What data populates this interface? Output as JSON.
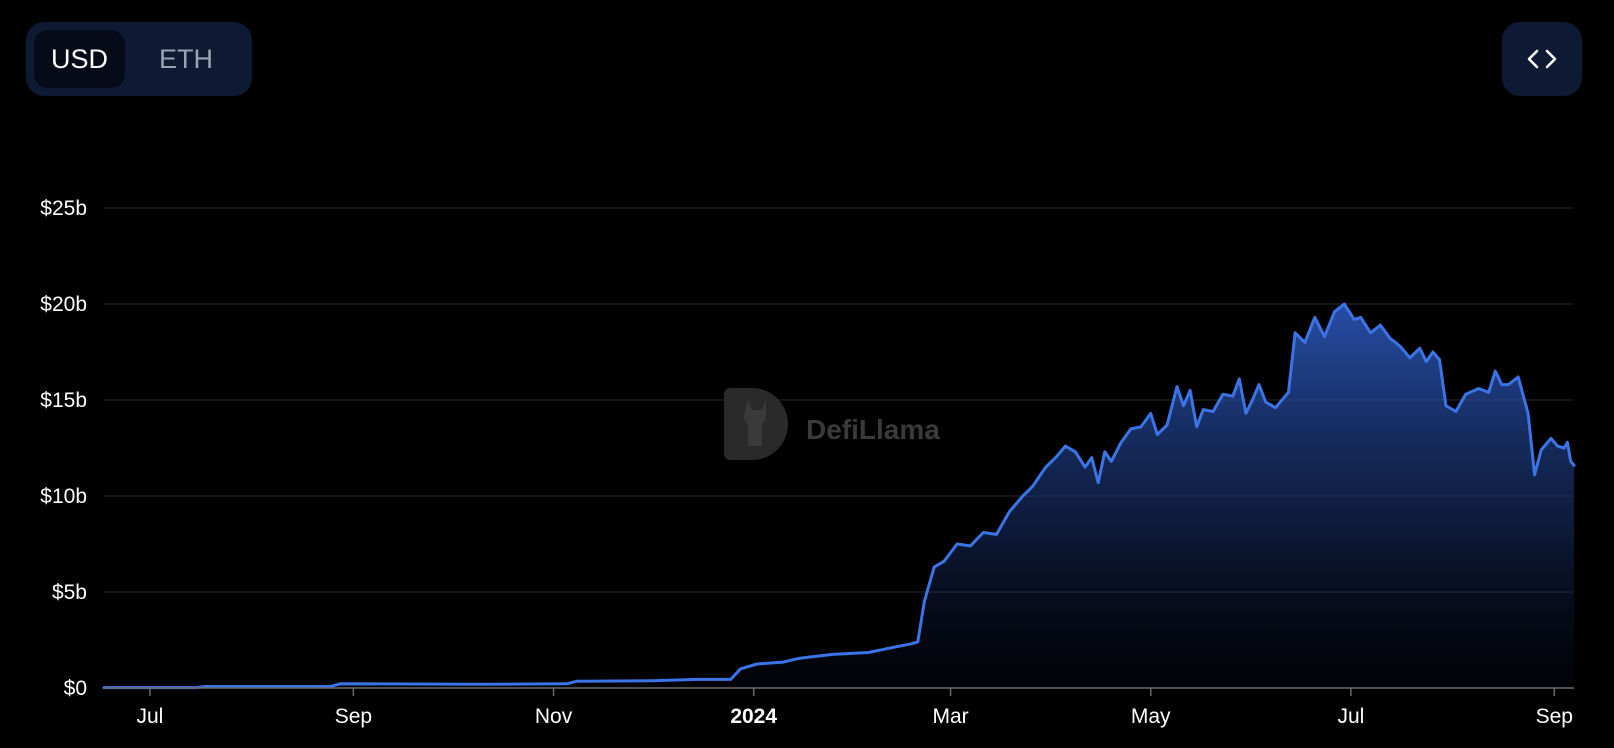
{
  "currency_toggle": {
    "usd_label": "USD",
    "eth_label": "ETH",
    "selected": "USD"
  },
  "embed_button": {
    "icon": "code-brackets-icon"
  },
  "watermark": {
    "text": "DefiLlama",
    "icon": "llama-logo-icon"
  },
  "colors": {
    "line": "#3b74e6",
    "background": "#000000",
    "toggle_bg": "#0e1a33",
    "grid": "#1c1c1c"
  },
  "chart_data": {
    "type": "area",
    "title": "",
    "xlabel": "",
    "ylabel": "",
    "grid": true,
    "x_range": [
      "2023-06-17",
      "2024-09-07"
    ],
    "ylim": [
      0,
      25
    ],
    "y_unit": "$b",
    "y_ticks": [
      {
        "value": 0,
        "label": "$0"
      },
      {
        "value": 5,
        "label": "$5b"
      },
      {
        "value": 10,
        "label": "$10b"
      },
      {
        "value": 15,
        "label": "$15b"
      },
      {
        "value": 20,
        "label": "$20b"
      },
      {
        "value": 25,
        "label": "$25b"
      }
    ],
    "x_ticks": [
      {
        "date": "2023-07-01",
        "label": "Jul",
        "bold": false
      },
      {
        "date": "2023-09-01",
        "label": "Sep",
        "bold": false
      },
      {
        "date": "2023-11-01",
        "label": "Nov",
        "bold": false
      },
      {
        "date": "2024-01-01",
        "label": "2024",
        "bold": true
      },
      {
        "date": "2024-03-01",
        "label": "Mar",
        "bold": false
      },
      {
        "date": "2024-05-01",
        "label": "May",
        "bold": false
      },
      {
        "date": "2024-07-01",
        "label": "Jul",
        "bold": false
      },
      {
        "date": "2024-09-01",
        "label": "Sep",
        "bold": false
      }
    ],
    "series": [
      {
        "points": [
          [
            "2023-06-17",
            0.02
          ],
          [
            "2023-07-15",
            0.02
          ],
          [
            "2023-07-18",
            0.08
          ],
          [
            "2023-08-25",
            0.08
          ],
          [
            "2023-08-28",
            0.22
          ],
          [
            "2023-10-10",
            0.2
          ],
          [
            "2023-11-05",
            0.22
          ],
          [
            "2023-11-08",
            0.35
          ],
          [
            "2023-12-01",
            0.38
          ],
          [
            "2023-12-15",
            0.45
          ],
          [
            "2023-12-25",
            0.45
          ],
          [
            "2023-12-28",
            1.0
          ],
          [
            "2024-01-02",
            1.25
          ],
          [
            "2024-01-10",
            1.35
          ],
          [
            "2024-01-15",
            1.55
          ],
          [
            "2024-01-25",
            1.75
          ],
          [
            "2024-02-05",
            1.85
          ],
          [
            "2024-02-12",
            2.1
          ],
          [
            "2024-02-18",
            2.3
          ],
          [
            "2024-02-20",
            2.4
          ],
          [
            "2024-02-22",
            4.5
          ],
          [
            "2024-02-25",
            6.3
          ],
          [
            "2024-02-28",
            6.6
          ],
          [
            "2024-03-03",
            7.5
          ],
          [
            "2024-03-07",
            7.4
          ],
          [
            "2024-03-11",
            8.1
          ],
          [
            "2024-03-15",
            8.0
          ],
          [
            "2024-03-19",
            9.2
          ],
          [
            "2024-03-23",
            10.0
          ],
          [
            "2024-03-26",
            10.5
          ],
          [
            "2024-03-30",
            11.5
          ],
          [
            "2024-04-02",
            12.0
          ],
          [
            "2024-04-05",
            12.6
          ],
          [
            "2024-04-08",
            12.3
          ],
          [
            "2024-04-11",
            11.5
          ],
          [
            "2024-04-13",
            12.0
          ],
          [
            "2024-04-15",
            10.7
          ],
          [
            "2024-04-17",
            12.3
          ],
          [
            "2024-04-19",
            11.8
          ],
          [
            "2024-04-22",
            12.8
          ],
          [
            "2024-04-25",
            13.5
          ],
          [
            "2024-04-28",
            13.6
          ],
          [
            "2024-05-01",
            14.3
          ],
          [
            "2024-05-03",
            13.2
          ],
          [
            "2024-05-06",
            13.7
          ],
          [
            "2024-05-09",
            15.7
          ],
          [
            "2024-05-11",
            14.7
          ],
          [
            "2024-05-13",
            15.5
          ],
          [
            "2024-05-15",
            13.6
          ],
          [
            "2024-05-17",
            14.5
          ],
          [
            "2024-05-20",
            14.4
          ],
          [
            "2024-05-23",
            15.3
          ],
          [
            "2024-05-26",
            15.2
          ],
          [
            "2024-05-28",
            16.1
          ],
          [
            "2024-05-30",
            14.3
          ],
          [
            "2024-06-01",
            15.0
          ],
          [
            "2024-06-03",
            15.8
          ],
          [
            "2024-06-05",
            14.9
          ],
          [
            "2024-06-08",
            14.6
          ],
          [
            "2024-06-12",
            15.4
          ],
          [
            "2024-06-14",
            18.5
          ],
          [
            "2024-06-17",
            18.0
          ],
          [
            "2024-06-20",
            19.3
          ],
          [
            "2024-06-23",
            18.3
          ],
          [
            "2024-06-26",
            19.6
          ],
          [
            "2024-06-29",
            20.0
          ],
          [
            "2024-07-02",
            19.2
          ],
          [
            "2024-07-04",
            19.3
          ],
          [
            "2024-07-07",
            18.5
          ],
          [
            "2024-07-10",
            18.9
          ],
          [
            "2024-07-13",
            18.2
          ],
          [
            "2024-07-16",
            17.8
          ],
          [
            "2024-07-19",
            17.2
          ],
          [
            "2024-07-22",
            17.7
          ],
          [
            "2024-07-24",
            17.0
          ],
          [
            "2024-07-26",
            17.5
          ],
          [
            "2024-07-28",
            17.1
          ],
          [
            "2024-07-30",
            14.7
          ],
          [
            "2024-08-02",
            14.4
          ],
          [
            "2024-08-05",
            15.3
          ],
          [
            "2024-08-09",
            15.6
          ],
          [
            "2024-08-12",
            15.4
          ],
          [
            "2024-08-14",
            16.5
          ],
          [
            "2024-08-16",
            15.8
          ],
          [
            "2024-08-18",
            15.8
          ],
          [
            "2024-08-21",
            16.2
          ],
          [
            "2024-08-24",
            14.3
          ],
          [
            "2024-08-26",
            11.1
          ],
          [
            "2024-08-28",
            12.4
          ],
          [
            "2024-08-31",
            13.0
          ],
          [
            "2024-09-02",
            12.6
          ],
          [
            "2024-09-04",
            12.5
          ],
          [
            "2024-09-05",
            12.8
          ],
          [
            "2024-09-06",
            11.8
          ],
          [
            "2024-09-07",
            11.6
          ]
        ]
      }
    ]
  }
}
